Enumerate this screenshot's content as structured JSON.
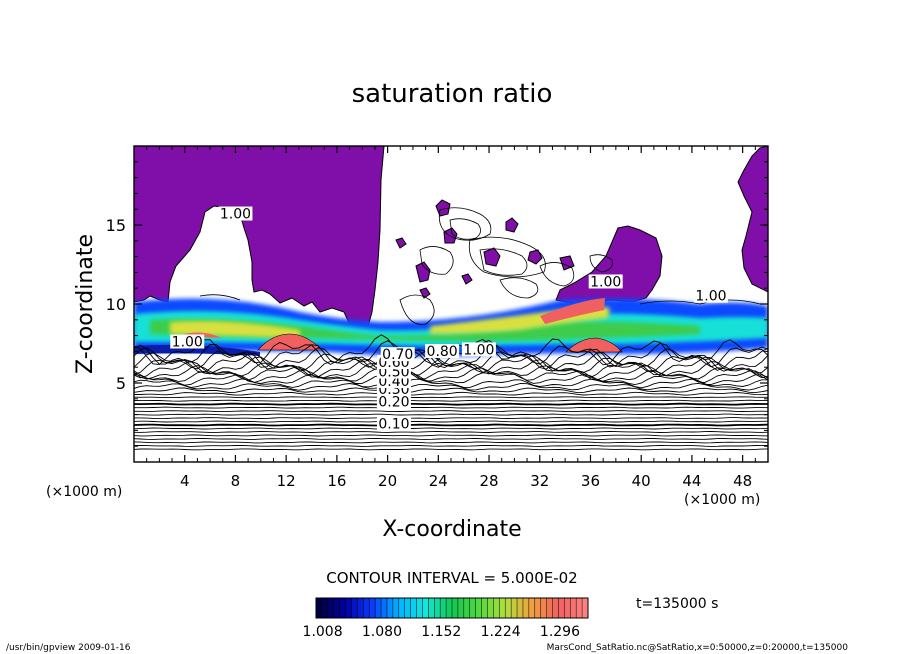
{
  "chart_data": {
    "type": "heatmap",
    "title": "saturation ratio",
    "xlabel": "X-coordinate",
    "ylabel": "Z-coordinate",
    "x_unit_left": "(×1000 m)",
    "x_unit_right": "(×1000 m)",
    "xlim": [
      0,
      50
    ],
    "ylim": [
      0,
      20
    ],
    "x_ticks": [
      4,
      8,
      12,
      16,
      20,
      24,
      28,
      32,
      36,
      40,
      44,
      48
    ],
    "y_ticks": [
      5,
      10,
      15
    ],
    "contour_interval_text": "CONTOUR INTERVAL = 5.000E-02",
    "time_text": "t=135000 s",
    "colorbar": {
      "range": [
        1.0,
        1.33
      ],
      "tick_labels": [
        "1.008",
        "1.080",
        "1.152",
        "1.224",
        "1.296"
      ],
      "colors": [
        "#000040",
        "#0000a0",
        "#0a3cff",
        "#00b4ff",
        "#14e6dc",
        "#10c850",
        "#50d840",
        "#b0e040",
        "#f0a040",
        "#f06060",
        "#ff8080"
      ]
    },
    "contour_labels": [
      {
        "text": "0.10",
        "x": 20.5,
        "z": 2.3
      },
      {
        "text": "0.20",
        "x": 20.5,
        "z": 3.7
      },
      {
        "text": "0.30",
        "x": 20.5,
        "z": 4.5
      },
      {
        "text": "0.40",
        "x": 20.5,
        "z": 5.0
      },
      {
        "text": "0.50",
        "x": 20.5,
        "z": 5.6
      },
      {
        "text": "0.60",
        "x": 20.5,
        "z": 6.2
      },
      {
        "text": "0.70",
        "x": 20.8,
        "z": 6.7
      },
      {
        "text": "0.80",
        "x": 24.3,
        "z": 6.9
      },
      {
        "text": "1.00",
        "x": 27.2,
        "z": 7.0
      },
      {
        "text": "1.00",
        "x": 4.2,
        "z": 7.5
      },
      {
        "text": "1.00",
        "x": 8.0,
        "z": 15.6
      },
      {
        "text": "1.00",
        "x": 37.2,
        "z": 11.3
      },
      {
        "text": "1.00",
        "x": 45.5,
        "z": 10.4
      }
    ],
    "footer_left": "/usr/bin/gpview   2009-01-16",
    "footer_right": "MarsCond_SatRatio.nc@SatRatio,x=0:50000,z=0:20000,t=135000"
  }
}
